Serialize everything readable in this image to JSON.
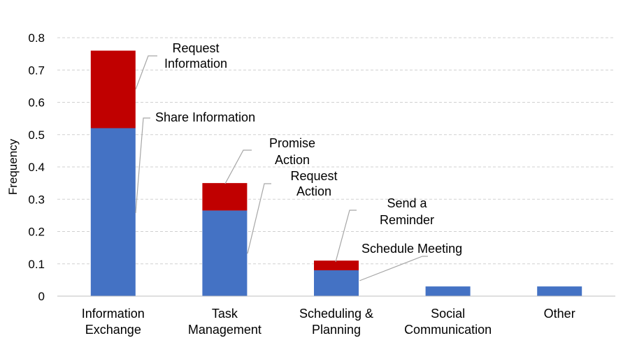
{
  "chart_data": {
    "type": "bar",
    "stacked": true,
    "title": "",
    "xlabel": "",
    "ylabel": "Frequency",
    "ylim": [
      0,
      0.8
    ],
    "yticks": [
      "0",
      "0.1",
      "0.2",
      "0.3",
      "0.4",
      "0.5",
      "0.6",
      "0.7",
      "0.8"
    ],
    "grid": true,
    "categories": [
      [
        "Information",
        "Exchange"
      ],
      [
        "Task",
        "Management"
      ],
      [
        "Scheduling &",
        "Planning"
      ],
      [
        "Social",
        "Communication"
      ],
      [
        "Other"
      ]
    ],
    "series": [
      {
        "color": "#4472c4",
        "values": [
          0.52,
          0.265,
          0.08,
          0.03,
          0.03
        ]
      },
      {
        "color": "#c00000",
        "values": [
          0.24,
          0.085,
          0.03,
          0,
          0
        ]
      }
    ],
    "annotations": [
      {
        "lines": [
          "Request",
          "Information"
        ],
        "category": 0,
        "series": 1
      },
      {
        "lines": [
          "Share Information"
        ],
        "category": 0,
        "series": 0
      },
      {
        "lines": [
          "Promise",
          "Action"
        ],
        "category": 1,
        "series": 1
      },
      {
        "lines": [
          "Request",
          "Action"
        ],
        "category": 1,
        "series": 0
      },
      {
        "lines": [
          "Send a",
          "Reminder"
        ],
        "category": 2,
        "series": 1
      },
      {
        "lines": [
          "Schedule Meeting"
        ],
        "category": 2,
        "series": 0
      }
    ]
  }
}
